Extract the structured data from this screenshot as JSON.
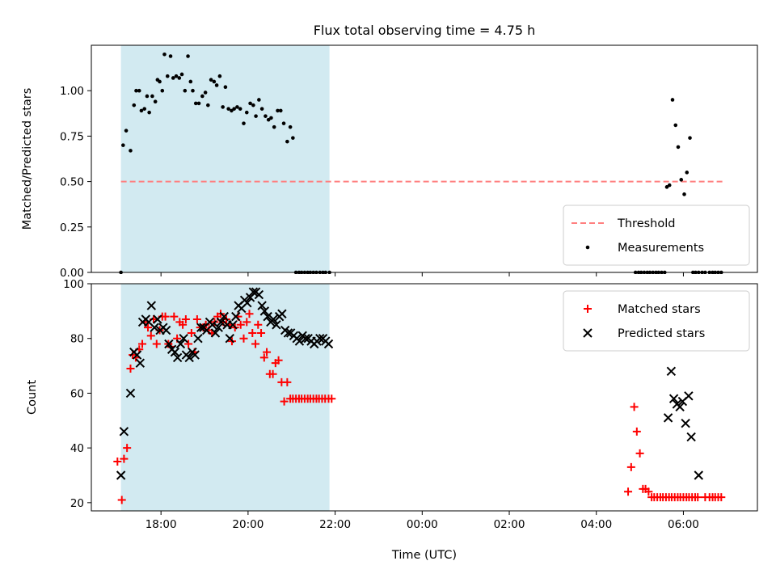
{
  "figure": {
    "title": "Flux total observing time = 4.75 h"
  },
  "chart_data": [
    {
      "type": "scatter",
      "title": "Flux total observing time = 4.75 h",
      "xlabel": "",
      "ylabel": "Matched/Predicted stars",
      "xlim": [
        16.4,
        31.7
      ],
      "ylim": [
        0,
        1.25
      ],
      "x_ticks": [
        {
          "value": 18,
          "label": "18:00"
        },
        {
          "value": 20,
          "label": "20:00"
        },
        {
          "value": 22,
          "label": "22:00"
        },
        {
          "value": 24,
          "label": "00:00"
        },
        {
          "value": 26,
          "label": "02:00"
        },
        {
          "value": 28,
          "label": "04:00"
        },
        {
          "value": 30,
          "label": "06:00"
        }
      ],
      "y_ticks": [
        {
          "value": 0.0,
          "label": "0.00"
        },
        {
          "value": 0.25,
          "label": "0.25"
        },
        {
          "value": 0.5,
          "label": "0.50"
        },
        {
          "value": 0.75,
          "label": "0.75"
        },
        {
          "value": 1.0,
          "label": "1.00"
        }
      ],
      "shaded_span": {
        "x": [
          17.08,
          21.87
        ],
        "color": "#add8e6"
      },
      "legend_position": "lower right",
      "threshold": {
        "name": "Threshold",
        "y": 0.5,
        "x": [
          17.08,
          30.9
        ],
        "color": "#ff7f7f"
      },
      "series": [
        {
          "name": "Measurements",
          "marker": "dot",
          "color": "#000000",
          "x": [
            17.08,
            17.13,
            17.2,
            17.3,
            17.38,
            17.43,
            17.5,
            17.55,
            17.62,
            17.68,
            17.73,
            17.8,
            17.87,
            17.92,
            17.97,
            18.03,
            18.08,
            18.15,
            18.22,
            18.28,
            18.35,
            18.42,
            18.48,
            18.55,
            18.62,
            18.68,
            18.73,
            18.8,
            18.87,
            18.95,
            19.02,
            19.08,
            19.15,
            19.22,
            19.28,
            19.35,
            19.42,
            19.48,
            19.55,
            19.62,
            19.68,
            19.75,
            19.82,
            19.9,
            19.97,
            20.05,
            20.12,
            20.18,
            20.25,
            20.32,
            20.4,
            20.47,
            20.53,
            20.6,
            20.68,
            20.75,
            20.82,
            20.9,
            20.97,
            21.03,
            21.1,
            21.17,
            21.23,
            21.3,
            21.37,
            21.43,
            21.5,
            21.57,
            21.65,
            21.72,
            21.78,
            21.87,
            28.9,
            28.97,
            29.03,
            29.1,
            29.17,
            29.23,
            29.3,
            29.37,
            29.43,
            29.5,
            29.57,
            29.62,
            29.68,
            29.75,
            29.82,
            29.88,
            29.95,
            30.02,
            30.08,
            30.15,
            30.22,
            30.28,
            30.35,
            30.43,
            30.5,
            30.6,
            30.67,
            30.73,
            30.8,
            30.87
          ],
          "y": [
            0.0,
            0.7,
            0.78,
            0.67,
            0.92,
            1.0,
            1.0,
            0.89,
            0.9,
            0.97,
            0.88,
            0.97,
            0.94,
            1.06,
            1.05,
            1.0,
            1.2,
            1.08,
            1.19,
            1.07,
            1.08,
            1.07,
            1.09,
            1.0,
            1.19,
            1.05,
            1.0,
            0.93,
            0.93,
            0.97,
            0.99,
            0.92,
            1.06,
            1.05,
            1.03,
            1.08,
            0.91,
            1.02,
            0.9,
            0.89,
            0.9,
            0.91,
            0.9,
            0.82,
            0.88,
            0.93,
            0.92,
            0.86,
            0.95,
            0.9,
            0.86,
            0.84,
            0.85,
            0.8,
            0.89,
            0.89,
            0.82,
            0.72,
            0.8,
            0.74,
            0.0,
            0.0,
            0.0,
            0.0,
            0.0,
            0.0,
            0.0,
            0.0,
            0.0,
            0.0,
            0.0,
            0.0,
            0.0,
            0.0,
            0.0,
            0.0,
            0.0,
            0.0,
            0.0,
            0.0,
            0.0,
            0.0,
            0.0,
            0.47,
            0.48,
            0.95,
            0.81,
            0.69,
            0.51,
            0.43,
            0.55,
            0.74,
            0.0,
            0.0,
            0.0,
            0.0,
            0.0,
            0.0,
            0.0,
            0.0,
            0.0,
            0.0
          ]
        }
      ]
    },
    {
      "type": "scatter",
      "title": "",
      "xlabel": "Time (UTC)",
      "ylabel": "Count",
      "xlim": [
        16.4,
        31.7
      ],
      "ylim": [
        17,
        100
      ],
      "x_ticks": [
        {
          "value": 18,
          "label": "18:00"
        },
        {
          "value": 20,
          "label": "20:00"
        },
        {
          "value": 22,
          "label": "22:00"
        },
        {
          "value": 24,
          "label": "00:00"
        },
        {
          "value": 26,
          "label": "02:00"
        },
        {
          "value": 28,
          "label": "04:00"
        },
        {
          "value": 30,
          "label": "06:00"
        }
      ],
      "y_ticks": [
        {
          "value": 20,
          "label": "20"
        },
        {
          "value": 40,
          "label": "40"
        },
        {
          "value": 60,
          "label": "60"
        },
        {
          "value": 80,
          "label": "80"
        },
        {
          "value": 100,
          "label": "100"
        }
      ],
      "shaded_span": {
        "x": [
          17.08,
          21.87
        ],
        "color": "#add8e6"
      },
      "legend_position": "upper right",
      "series": [
        {
          "name": "Matched stars",
          "marker": "plus",
          "color": "#ff0000",
          "x": [
            17.0,
            17.1,
            17.15,
            17.22,
            17.3,
            17.35,
            17.42,
            17.5,
            17.57,
            17.63,
            17.7,
            17.77,
            17.83,
            17.9,
            17.97,
            18.03,
            18.1,
            18.17,
            18.23,
            18.3,
            18.37,
            18.43,
            18.5,
            18.57,
            18.63,
            18.7,
            18.77,
            18.83,
            18.9,
            18.97,
            19.03,
            19.1,
            19.17,
            19.23,
            19.3,
            19.37,
            19.43,
            19.5,
            19.57,
            19.63,
            19.7,
            19.77,
            19.83,
            19.9,
            19.97,
            20.03,
            20.1,
            20.17,
            20.23,
            20.3,
            20.37,
            20.43,
            20.5,
            20.57,
            20.63,
            20.7,
            20.77,
            20.83,
            20.9,
            20.97,
            21.03,
            21.1,
            21.17,
            21.23,
            21.3,
            21.37,
            21.43,
            21.5,
            21.57,
            21.63,
            21.7,
            21.77,
            21.85,
            21.92,
            28.73,
            28.8,
            28.87,
            28.93,
            29.0,
            29.07,
            29.13,
            29.2,
            29.27,
            29.33,
            29.4,
            29.47,
            29.53,
            29.6,
            29.67,
            29.73,
            29.8,
            29.87,
            29.93,
            30.0,
            30.07,
            30.13,
            30.2,
            30.27,
            30.33,
            30.5,
            30.6,
            30.67,
            30.73,
            30.8,
            30.87
          ],
          "y": [
            35,
            21,
            36,
            40,
            69,
            74,
            73,
            76,
            78,
            86,
            84,
            81,
            87,
            78,
            83,
            88,
            88,
            78,
            77,
            88,
            80,
            86,
            85,
            87,
            78,
            82,
            75,
            87,
            84,
            84,
            85,
            83,
            82,
            86,
            88,
            89,
            86,
            87,
            85,
            79,
            84,
            88,
            85,
            80,
            86,
            89,
            82,
            78,
            85,
            82,
            73,
            75,
            67,
            67,
            71,
            72,
            64,
            57,
            64,
            58,
            58,
            58,
            58,
            58,
            58,
            58,
            58,
            58,
            58,
            58,
            58,
            58,
            58,
            58,
            24,
            33,
            55,
            46,
            38,
            25,
            25,
            24,
            22,
            22,
            22,
            22,
            22,
            22,
            22,
            22,
            22,
            22,
            22,
            22,
            22,
            22,
            22,
            22,
            22,
            22,
            22,
            22,
            22,
            22,
            22
          ],
          "y_comment": ""
        },
        {
          "name": "Predicted stars",
          "marker": "x",
          "color": "#000000",
          "x": [
            17.08,
            17.15,
            17.3,
            17.38,
            17.45,
            17.52,
            17.58,
            17.65,
            17.72,
            17.78,
            17.85,
            17.92,
            17.98,
            18.05,
            18.12,
            18.18,
            18.25,
            18.32,
            18.38,
            18.45,
            18.52,
            18.58,
            18.65,
            18.72,
            18.78,
            18.85,
            18.92,
            18.98,
            19.05,
            19.12,
            19.18,
            19.25,
            19.32,
            19.38,
            19.45,
            19.52,
            19.58,
            19.65,
            19.72,
            19.78,
            19.85,
            19.92,
            19.98,
            20.05,
            20.12,
            20.18,
            20.25,
            20.32,
            20.38,
            20.45,
            20.52,
            20.58,
            20.65,
            20.72,
            20.78,
            20.85,
            20.92,
            20.98,
            21.05,
            21.12,
            21.18,
            21.25,
            21.32,
            21.38,
            21.45,
            21.52,
            21.58,
            21.65,
            21.72,
            21.78,
            21.85,
            29.65,
            29.72,
            29.78,
            29.85,
            29.92,
            29.98,
            30.05,
            30.12,
            30.18,
            30.35
          ],
          "y": [
            30,
            46,
            60,
            75,
            74,
            71,
            86,
            87,
            86,
            92,
            84,
            87,
            83,
            84,
            83,
            78,
            76,
            75,
            73,
            78,
            80,
            74,
            73,
            75,
            74,
            80,
            84,
            84,
            83,
            86,
            85,
            82,
            84,
            86,
            88,
            85,
            80,
            85,
            88,
            92,
            91,
            94,
            93,
            95,
            97,
            97,
            96,
            92,
            90,
            88,
            86,
            87,
            85,
            88,
            89,
            83,
            82,
            82,
            81,
            80,
            79,
            81,
            80,
            80,
            79,
            78,
            79,
            80,
            80,
            79,
            78,
            51,
            68,
            58,
            56,
            55,
            57,
            49,
            59,
            44,
            30
          ]
        }
      ]
    }
  ]
}
